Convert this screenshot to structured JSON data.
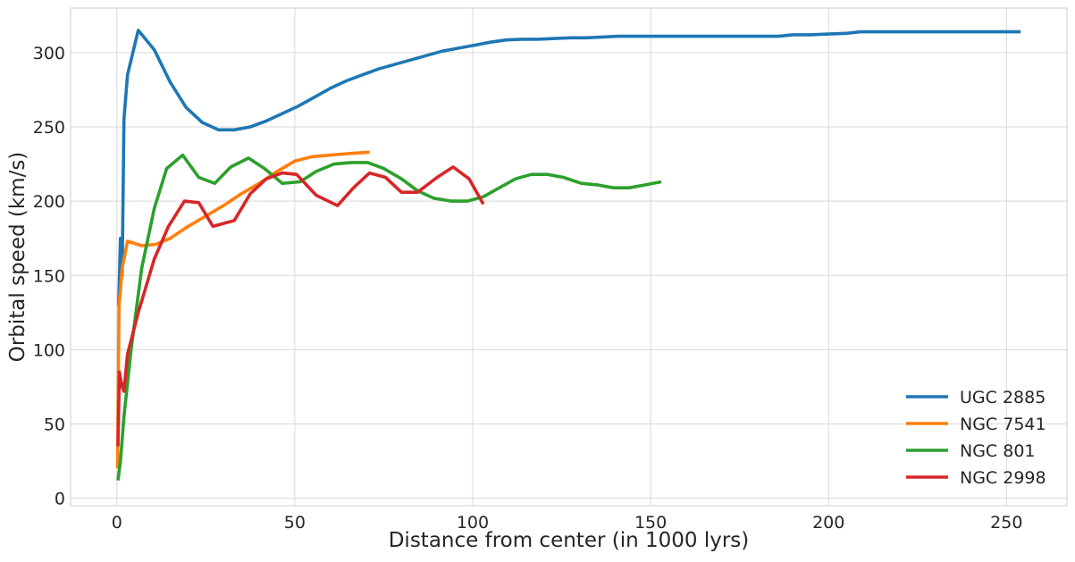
{
  "chart_data": {
    "type": "line",
    "title": "",
    "xlabel": "Distance from center (in 1000 lyrs)",
    "ylabel": "Orbital speed (km/s)",
    "xlim": [
      -13,
      267
    ],
    "ylim": [
      -5,
      330
    ],
    "xticks": [
      0,
      50,
      100,
      150,
      200,
      250
    ],
    "yticks": [
      0,
      50,
      100,
      150,
      200,
      250,
      300
    ],
    "grid": true,
    "legend_position": "lower-right",
    "series": [
      {
        "name": "UGC 2885",
        "color": "#1f77b4",
        "x": [
          0.5,
          1.0,
          1.5,
          2,
          3,
          6,
          10.5,
          15,
          19.5,
          24,
          28.5,
          33,
          37.5,
          42,
          46.5,
          51,
          55.5,
          60,
          64.5,
          69,
          73.5,
          78,
          82.5,
          87,
          91.5,
          96,
          100.5,
          105,
          109.5,
          114,
          118.5,
          123,
          127.5,
          132,
          136.5,
          141,
          145.5,
          150,
          160,
          170,
          180,
          186,
          190,
          195,
          200,
          205,
          209,
          215,
          225,
          235,
          245,
          254
        ],
        "y": [
          130,
          175,
          150,
          255,
          285,
          315,
          302,
          280,
          263,
          253,
          248,
          248,
          250,
          254,
          259,
          264,
          270,
          276,
          281,
          285,
          289,
          292,
          295,
          298,
          301,
          303,
          305,
          307,
          308.5,
          309,
          309,
          309.5,
          310,
          310,
          310.5,
          311,
          311,
          311,
          311,
          311,
          311,
          311,
          312,
          312,
          312.5,
          313,
          314,
          314,
          314,
          314,
          314,
          314
        ]
      },
      {
        "name": "NGC 7541",
        "color": "#ff7f0e",
        "x": [
          0.2,
          0.4,
          0.6,
          1.0,
          1.5,
          3,
          7,
          11,
          15,
          20,
          25,
          30,
          35,
          40,
          45,
          50,
          55,
          60,
          65,
          71
        ],
        "y": [
          20,
          80,
          130,
          140,
          155,
          173,
          170,
          171,
          175,
          183,
          190,
          197,
          205,
          212,
          220,
          227,
          230,
          231,
          232,
          233
        ]
      },
      {
        "name": "NGC 801",
        "color": "#2ca02c",
        "x": [
          0.3,
          1,
          2,
          4,
          7,
          10.5,
          14,
          18.5,
          23,
          27.5,
          32,
          37,
          41.5,
          46.5,
          51.5,
          56,
          61,
          66,
          70.5,
          75,
          80,
          84.5,
          89,
          94,
          98.5,
          103,
          107.5,
          112,
          116.5,
          121,
          125.5,
          130.5,
          135,
          139.5,
          144,
          148.5,
          153
        ],
        "y": [
          12,
          25,
          55,
          100,
          155,
          195,
          222,
          231,
          216,
          212,
          223,
          229,
          222,
          212,
          213,
          220,
          225,
          226,
          226,
          222,
          215,
          207,
          202,
          200,
          200,
          203,
          209,
          215,
          218,
          218,
          216,
          212,
          211,
          209,
          209,
          211,
          213
        ]
      },
      {
        "name": "NGC 2998",
        "color": "#d62728",
        "x": [
          0.3,
          0.7,
          1.1,
          1.5,
          2,
          3,
          6,
          10.5,
          14.5,
          19,
          23,
          27,
          33,
          37.5,
          42,
          46.5,
          50.5,
          56,
          62,
          66.5,
          71,
          75.5,
          80,
          84.5,
          90,
          94.5,
          99,
          103
        ],
        "y": [
          35,
          85,
          80,
          75,
          72,
          97,
          125,
          161,
          183,
          200,
          199,
          183,
          187,
          205,
          215,
          219,
          218,
          204,
          197,
          209,
          219,
          216,
          206,
          206,
          216,
          223,
          215,
          198
        ]
      }
    ]
  }
}
